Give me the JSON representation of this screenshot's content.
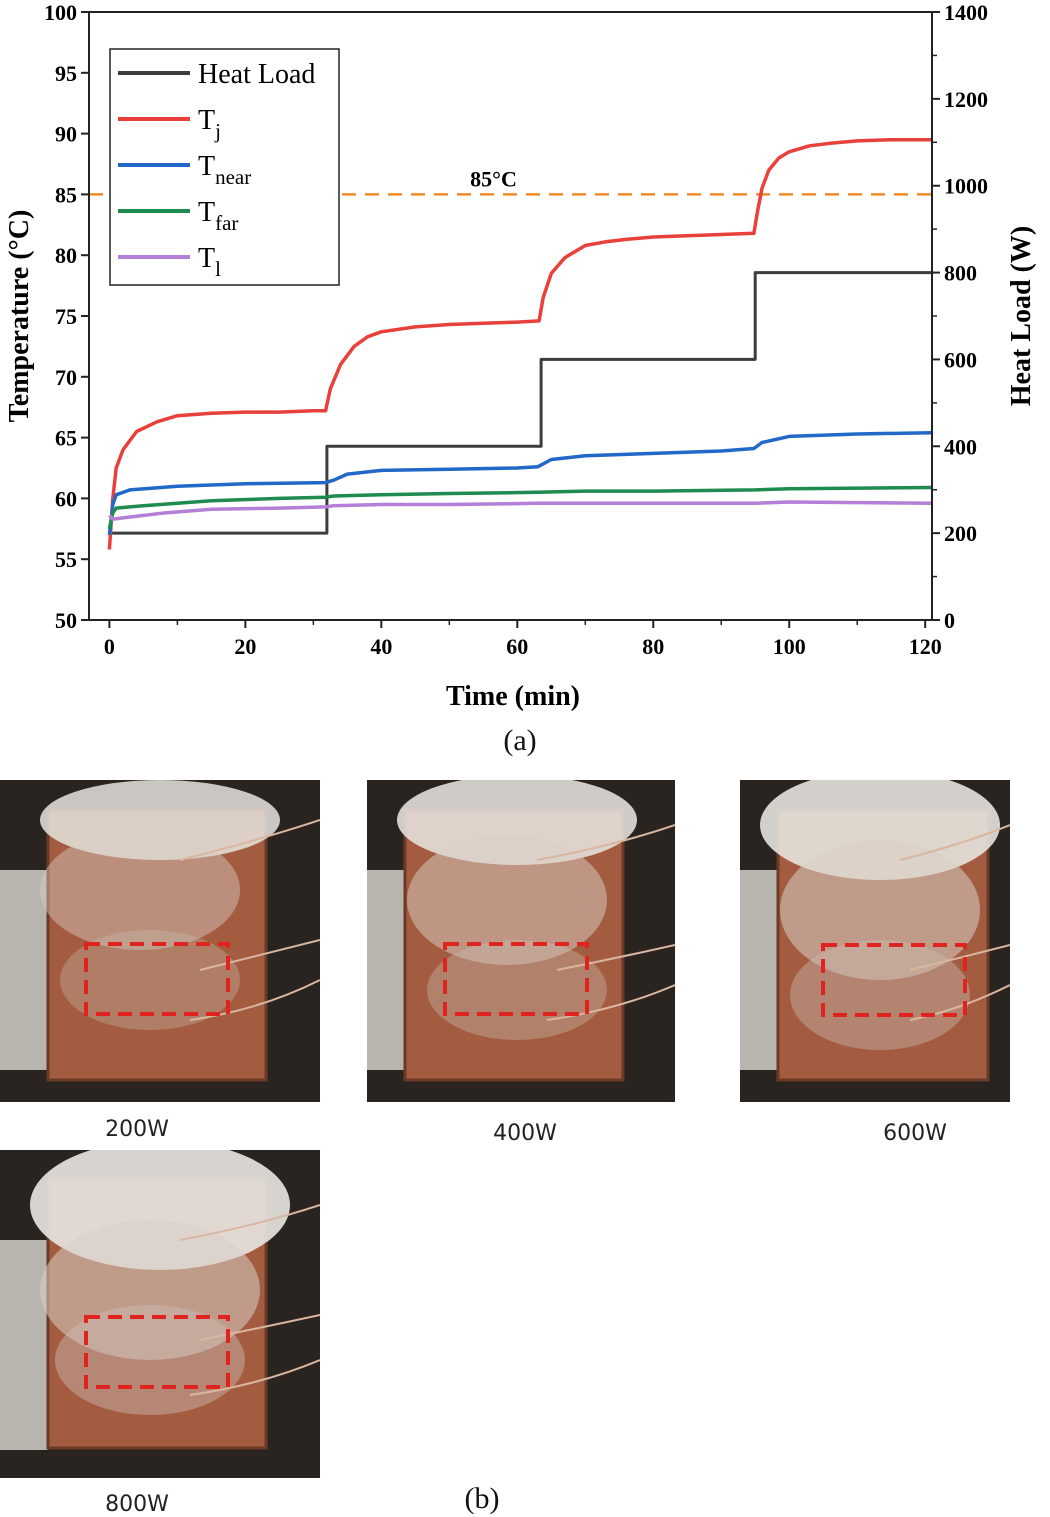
{
  "chart_data": {
    "type": "line",
    "xlabel": "Time (min)",
    "ylabel": "Temperature (°C)",
    "y2label": "Heat Load (W)",
    "xlim": [
      -3,
      121
    ],
    "ylim": [
      50,
      100
    ],
    "y2lim": [
      0,
      1400
    ],
    "xticks": [
      0,
      20,
      40,
      60,
      80,
      100,
      120
    ],
    "yticks": [
      50,
      55,
      60,
      65,
      70,
      75,
      80,
      85,
      90,
      95,
      100
    ],
    "y2ticks": [
      0,
      200,
      400,
      600,
      800,
      1000,
      1200,
      1400
    ],
    "threshold": {
      "value": 85,
      "label": "85°C",
      "color": "#f28c28"
    },
    "legend_position": "top-left",
    "series": [
      {
        "name": "Heat Load",
        "axis": "right",
        "color": "#3d3d3d",
        "x": [
          0,
          32,
          32,
          63.5,
          63.5,
          95,
          95,
          121
        ],
        "values": [
          200,
          200,
          400,
          400,
          600,
          600,
          800,
          800
        ]
      },
      {
        "name": "T_j",
        "label_main": "T",
        "label_sub": "j",
        "axis": "left",
        "color": "#e8403a",
        "x": [
          0,
          0.5,
          1,
          2,
          4,
          7,
          10,
          15,
          20,
          25,
          30,
          31.8,
          32.5,
          34,
          36,
          38,
          40,
          45,
          50,
          55,
          60,
          63.2,
          63.8,
          65,
          67,
          70,
          73,
          76,
          80,
          85,
          90,
          94.8,
          95.3,
          96,
          97,
          98.5,
          100,
          103,
          106,
          110,
          115,
          121
        ],
        "values": [
          55.8,
          60,
          62.5,
          64,
          65.5,
          66.3,
          66.8,
          67,
          67.1,
          67.1,
          67.2,
          67.2,
          69,
          71,
          72.5,
          73.3,
          73.7,
          74.1,
          74.3,
          74.4,
          74.5,
          74.6,
          76.5,
          78.5,
          79.8,
          80.8,
          81.1,
          81.3,
          81.5,
          81.6,
          81.7,
          81.8,
          83.5,
          85.5,
          87,
          88,
          88.5,
          89,
          89.2,
          89.4,
          89.5,
          89.5
        ]
      },
      {
        "name": "T_near",
        "label_main": "T",
        "label_sub": "near",
        "axis": "left",
        "color": "#2268c8",
        "x": [
          0,
          0.5,
          1,
          3,
          10,
          20,
          31.8,
          33,
          35,
          40,
          50,
          60,
          63,
          65,
          70,
          80,
          90,
          94.8,
          96,
          100,
          110,
          121
        ],
        "values": [
          57,
          59.5,
          60.3,
          60.7,
          61,
          61.2,
          61.3,
          61.5,
          62,
          62.3,
          62.4,
          62.5,
          62.6,
          63.2,
          63.5,
          63.7,
          63.9,
          64.1,
          64.6,
          65.1,
          65.3,
          65.4
        ]
      },
      {
        "name": "T_far",
        "label_main": "T",
        "label_sub": "far",
        "axis": "left",
        "color": "#1e8b4f",
        "x": [
          0,
          0.5,
          1,
          5,
          15,
          25,
          31.8,
          33,
          40,
          50,
          63,
          70,
          80,
          95,
          100,
          121
        ],
        "values": [
          57.5,
          58.8,
          59.2,
          59.4,
          59.8,
          60,
          60.1,
          60.2,
          60.3,
          60.4,
          60.5,
          60.6,
          60.6,
          60.7,
          60.8,
          60.9
        ]
      },
      {
        "name": "T_l",
        "label_main": "T",
        "label_sub": "l",
        "axis": "left",
        "color": "#b47fd6",
        "x": [
          0,
          0.5,
          2,
          8,
          15,
          25,
          31.8,
          33,
          40,
          50,
          63,
          70,
          80,
          95,
          100,
          121
        ],
        "values": [
          58.6,
          58.3,
          58.4,
          58.8,
          59.1,
          59.2,
          59.3,
          59.4,
          59.5,
          59.5,
          59.6,
          59.6,
          59.6,
          59.6,
          59.7,
          59.6
        ]
      }
    ]
  },
  "captions": {
    "a": "(a)",
    "b": "(b)"
  },
  "photos": [
    {
      "label": "200W"
    },
    {
      "label": "400W"
    },
    {
      "label": "600W"
    },
    {
      "label": "800W"
    }
  ]
}
